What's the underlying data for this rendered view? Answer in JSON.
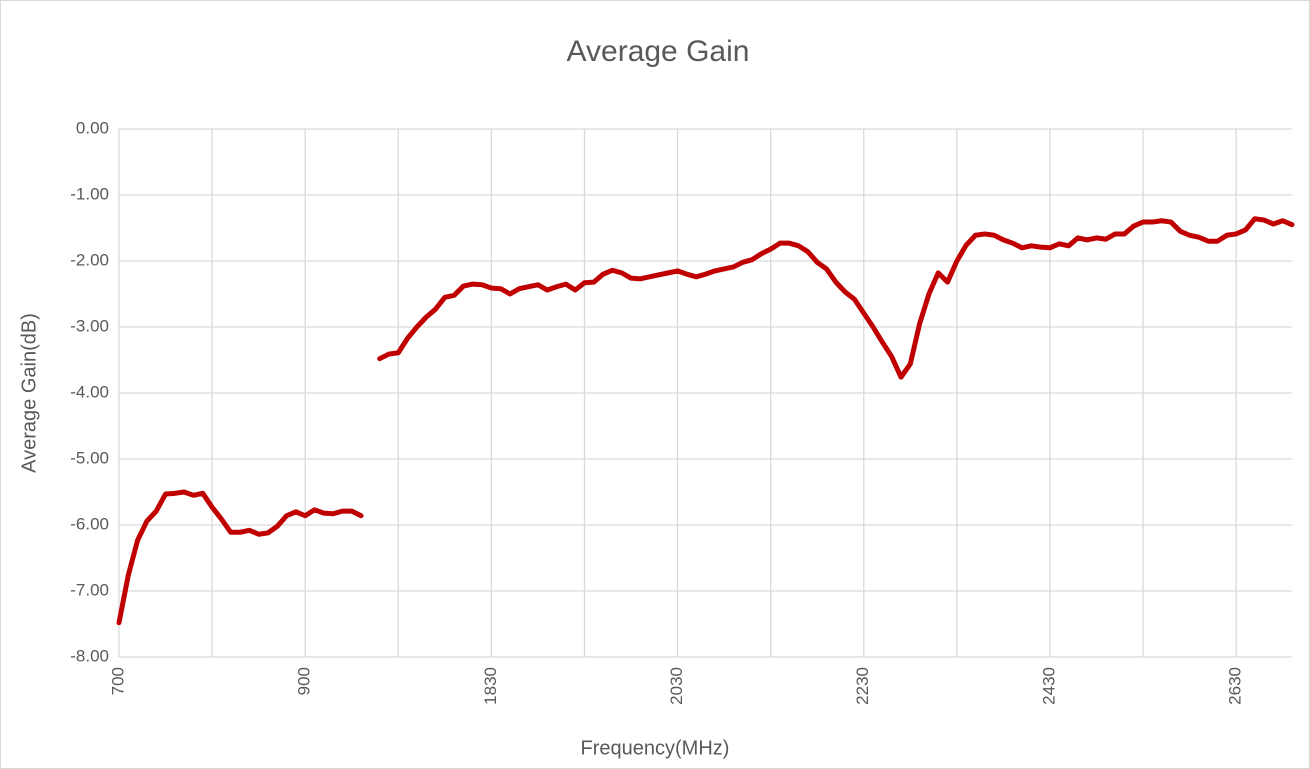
{
  "chart_data": {
    "type": "line",
    "title": "Average Gain",
    "x_label": "Frequency(MHz)",
    "y_label": "Average Gain(dB)",
    "categories": [
      700,
      710,
      720,
      730,
      740,
      750,
      760,
      770,
      780,
      790,
      800,
      810,
      820,
      830,
      840,
      850,
      860,
      870,
      880,
      890,
      900,
      910,
      920,
      930,
      940,
      950,
      960,
      null,
      1710,
      1720,
      1730,
      1740,
      1750,
      1760,
      1770,
      1780,
      1790,
      1800,
      1810,
      1820,
      1830,
      1840,
      1850,
      1860,
      1870,
      1880,
      1890,
      1900,
      1910,
      1920,
      1930,
      1940,
      1950,
      1960,
      1970,
      1980,
      1990,
      2000,
      2010,
      2020,
      2030,
      2040,
      2050,
      2060,
      2070,
      2080,
      2090,
      2100,
      2110,
      2120,
      2130,
      2140,
      2150,
      2160,
      2170,
      2180,
      2190,
      2200,
      2210,
      2220,
      2230,
      2240,
      2250,
      2260,
      2270,
      2280,
      2290,
      2300,
      2310,
      2320,
      2330,
      2340,
      2350,
      2360,
      2370,
      2380,
      2390,
      2400,
      2410,
      2420,
      2430,
      2440,
      2450,
      2460,
      2470,
      2480,
      2490,
      2500,
      2510,
      2520,
      2530,
      2540,
      2550,
      2560,
      2570,
      2580,
      2590,
      2600,
      2610,
      2620,
      2630,
      2640,
      2650,
      2660,
      2670,
      2680,
      2690
    ],
    "series": [
      {
        "name": "Average Gain",
        "color": "#c00000",
        "values": [
          -7.48,
          -6.76,
          -6.23,
          -5.94,
          -5.79,
          -5.53,
          -5.52,
          -5.5,
          -5.55,
          -5.52,
          -5.73,
          -5.91,
          -6.11,
          -6.11,
          -6.08,
          -6.14,
          -6.12,
          -6.02,
          -5.86,
          -5.8,
          -5.86,
          -5.77,
          -5.82,
          -5.83,
          -5.79,
          -5.79,
          -5.86,
          null,
          -3.48,
          -3.41,
          -3.39,
          -3.17,
          -3.0,
          -2.85,
          -2.73,
          -2.55,
          -2.52,
          -2.38,
          -2.35,
          -2.36,
          -2.41,
          -2.42,
          -2.5,
          -2.42,
          -2.39,
          -2.36,
          -2.44,
          -2.39,
          -2.35,
          -2.44,
          -2.33,
          -2.32,
          -2.2,
          -2.14,
          -2.18,
          -2.26,
          -2.27,
          -2.24,
          -2.21,
          -2.18,
          -2.15,
          -2.2,
          -2.24,
          -2.2,
          -2.15,
          -2.12,
          -2.09,
          -2.02,
          -1.98,
          -1.89,
          -1.82,
          -1.73,
          -1.73,
          -1.77,
          -1.86,
          -2.02,
          -2.12,
          -2.32,
          -2.47,
          -2.58,
          -2.79,
          -3.0,
          -3.23,
          -3.45,
          -3.76,
          -3.56,
          -2.95,
          -2.5,
          -2.18,
          -2.32,
          -2.0,
          -1.76,
          -1.61,
          -1.59,
          -1.61,
          -1.68,
          -1.73,
          -1.8,
          -1.77,
          -1.79,
          -1.8,
          -1.74,
          -1.77,
          -1.65,
          -1.68,
          -1.65,
          -1.67,
          -1.59,
          -1.59,
          -1.47,
          -1.41,
          -1.41,
          -1.39,
          -1.41,
          -1.55,
          -1.61,
          -1.64,
          -1.7,
          -1.7,
          -1.61,
          -1.59,
          -1.53,
          -1.36,
          -1.38,
          -1.44,
          -1.39,
          -1.45
        ]
      }
    ],
    "ylim": [
      -8,
      0
    ],
    "yticks": [
      {
        "value": 0,
        "label": "0.00"
      },
      {
        "value": -1,
        "label": "-1.00"
      },
      {
        "value": -2,
        "label": "-2.00"
      },
      {
        "value": -3,
        "label": "-3.00"
      },
      {
        "value": -4,
        "label": "-4.00"
      },
      {
        "value": -5,
        "label": "-5.00"
      },
      {
        "value": -6,
        "label": "-6.00"
      },
      {
        "value": -7,
        "label": "-7.00"
      },
      {
        "value": -8,
        "label": "-8.00"
      }
    ],
    "grid": true
  }
}
